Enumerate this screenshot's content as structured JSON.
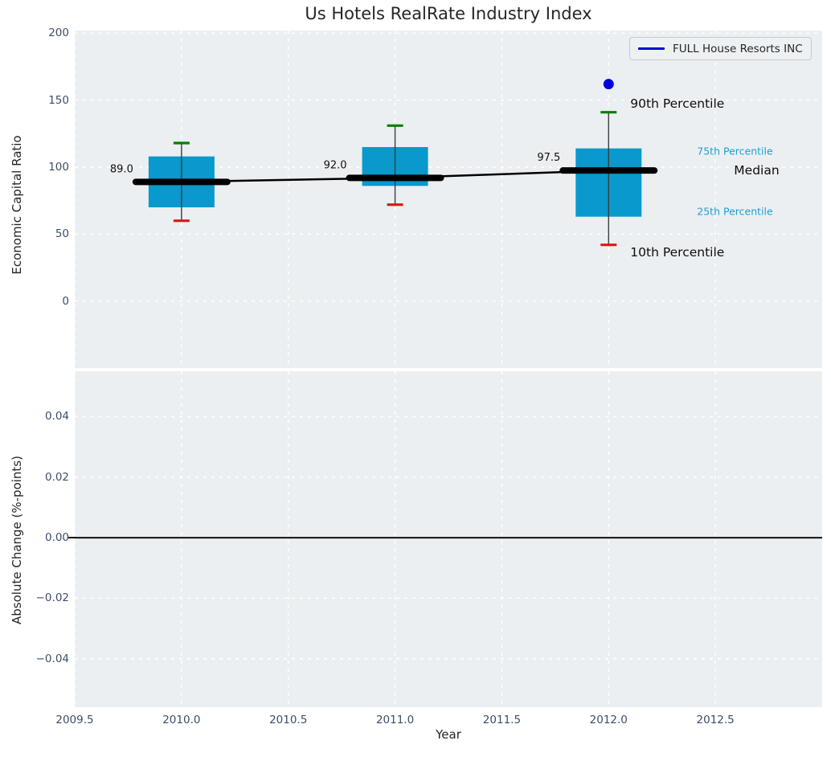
{
  "title": "Us Hotels RealRate Industry Index",
  "legend": {
    "label": "FULL House Resorts INC"
  },
  "annotations": {
    "p90": "90th Percentile",
    "p75": "75th Percentile",
    "median": "Median",
    "p25": "25th Percentile",
    "p10": "10th Percentile"
  },
  "colors": {
    "axes_bg": "#eceff1",
    "grid": "#ffffff",
    "box_fill": "#0999cd",
    "whisker": "#3c3c3c",
    "cap_high": "#008000",
    "cap_low": "#e01515",
    "median_line": "#000000",
    "company": "#0000dd",
    "percentile_text": "#1b9fd4",
    "tick_text": "#3d4e68",
    "zero_line": "#111111"
  },
  "chart_data": {
    "type": "bar",
    "subtype": "boxplot-percentile-timeseries",
    "title": "Us Hotels RealRate Industry Index",
    "xlabel": "Year",
    "xlim": [
      2009.5,
      2013.0
    ],
    "xticks": {
      "values": [
        2009.5,
        2010.0,
        2010.5,
        2011.0,
        2011.5,
        2012.0,
        2012.5
      ],
      "labels": [
        "2009.5",
        "2010.0",
        "2010.5",
        "2011.0",
        "2011.5",
        "2012.0",
        "2012.5"
      ]
    },
    "panels": [
      {
        "ylabel": "Economic Capital Ratio",
        "ylim": [
          -50,
          202
        ],
        "yticks": {
          "values": [
            200,
            150,
            100,
            50,
            0
          ],
          "labels": [
            "200",
            "150",
            "100",
            "50",
            "0"
          ]
        },
        "grid": true
      },
      {
        "ylabel": "Absolute Change (%-points)",
        "ylim": [
          -0.056,
          0.055
        ],
        "yticks": {
          "values": [
            0.04,
            0.02,
            0.0,
            -0.02,
            -0.04
          ],
          "labels": [
            "0.04",
            "0.02",
            "0.00",
            "−0.02",
            "−0.04"
          ]
        },
        "grid": true,
        "zero_line": 0.0
      }
    ],
    "boxes": [
      {
        "x": 2010,
        "p10": 60,
        "p25": 70,
        "median": 89,
        "p75": 108,
        "p90": 118,
        "median_label": "89.0"
      },
      {
        "x": 2011,
        "p10": 72,
        "p25": 86,
        "median": 92,
        "p75": 115,
        "p90": 131,
        "median_label": "92.0"
      },
      {
        "x": 2012,
        "p10": 42,
        "p25": 63,
        "median": 97.5,
        "p75": 114,
        "p90": 141,
        "median_label": "97.5"
      }
    ],
    "series": [
      {
        "name": "FULL House Resorts INC",
        "type": "scatter",
        "color": "#0000dd",
        "points": [
          {
            "x": 2012,
            "y": 162
          }
        ]
      }
    ],
    "legend_position": "upper right"
  }
}
